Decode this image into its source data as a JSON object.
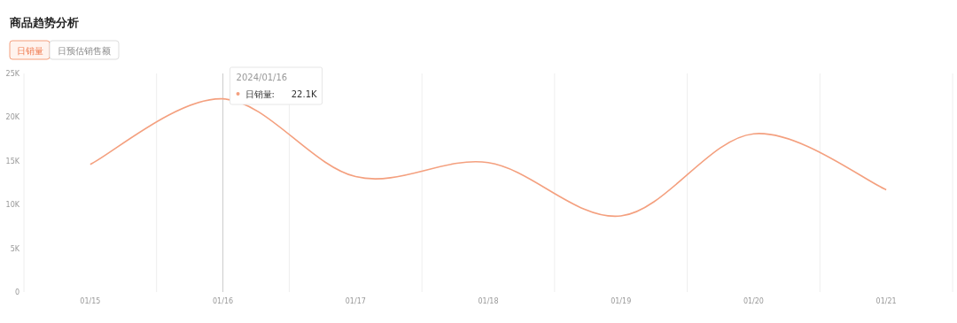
{
  "chart_data": {
    "type": "line",
    "title": "商品趋势分析",
    "categories": [
      "01/15",
      "01/16",
      "01/17",
      "01/18",
      "01/19",
      "01/20",
      "01/21"
    ],
    "series": [
      {
        "name": "日销量",
        "color": "#f4a07f",
        "values": [
          14600,
          22100,
          13200,
          14800,
          8700,
          18100,
          11700
        ]
      }
    ],
    "ylim": [
      0,
      25000
    ],
    "yticks": [
      {
        "value": 0,
        "label": "0"
      },
      {
        "value": 5000,
        "label": "5K"
      },
      {
        "value": 10000,
        "label": "10K"
      },
      {
        "value": 15000,
        "label": "15K"
      },
      {
        "value": 20000,
        "label": "20K"
      },
      {
        "value": 25000,
        "label": "25K"
      }
    ],
    "grid": "x",
    "marker": "none",
    "line_style": "solid",
    "ref_lines": [
      {
        "axis": "x",
        "value": "01/16",
        "color": "#cccccc"
      }
    ],
    "annotations": [
      "日预估销售额",
      "2024/01/16",
      "日销量:",
      "22.1K"
    ]
  }
}
